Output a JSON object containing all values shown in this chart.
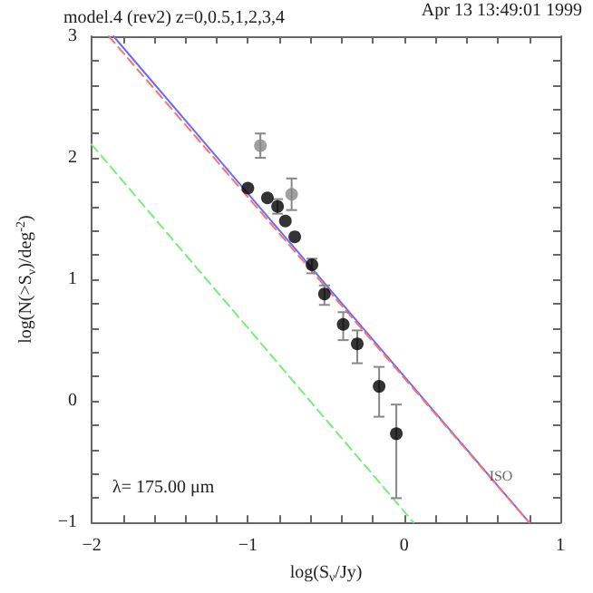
{
  "chart_data": {
    "type": "scatter",
    "title": "model.4 (rev2) z=0,0.5,1,2,3,4",
    "xlabel": "log(S$_{ν}$/Jy)",
    "ylabel": "log(N(>S$_{ν}$)/deg$^{-2}$)",
    "annotations": [
      "Apr 13 13:49:01 1999",
      "λ= 175.00 μm",
      {
        "text": "ISO",
        "x": 0.62,
        "y": -0.62
      }
    ],
    "xlim": [
      -2,
      1
    ],
    "ylim": [
      -1,
      3
    ],
    "xticks": [
      {
        "value": -2,
        "label": "−2"
      },
      {
        "value": -1.8,
        "label": null
      },
      {
        "value": -1.6,
        "label": null
      },
      {
        "value": -1.4,
        "label": null
      },
      {
        "value": -1.2,
        "label": null
      },
      {
        "value": -1,
        "label": "−1"
      },
      {
        "value": -0.8,
        "label": null
      },
      {
        "value": -0.6,
        "label": null
      },
      {
        "value": -0.4,
        "label": null
      },
      {
        "value": -0.2,
        "label": null
      },
      0,
      {
        "value": 0.2,
        "label": null
      },
      {
        "value": 0.4,
        "label": null
      },
      {
        "value": 0.6,
        "label": null
      },
      {
        "value": 0.8,
        "label": null
      },
      1
    ],
    "yticks": [
      {
        "value": -1,
        "label": "−1"
      },
      {
        "value": -0.8,
        "label": null
      },
      {
        "value": -0.6,
        "label": null
      },
      {
        "value": -0.4,
        "label": null
      },
      {
        "value": -0.2,
        "label": null
      },
      0,
      {
        "value": 0.2,
        "label": null
      },
      {
        "value": 0.4,
        "label": null
      },
      {
        "value": 0.6,
        "label": null
      },
      {
        "value": 0.8,
        "label": null
      },
      1,
      {
        "value": 1.2,
        "label": null
      },
      {
        "value": 1.4,
        "label": null
      },
      {
        "value": 1.6,
        "label": null
      },
      {
        "value": 1.8,
        "label": null
      },
      2,
      {
        "value": 2.2,
        "label": null
      },
      {
        "value": 2.4,
        "label": null
      },
      {
        "value": 2.6,
        "label": null
      },
      {
        "value": 2.8,
        "label": null
      },
      3
    ],
    "grid": false,
    "marker": "circle",
    "series": [
      {
        "type": "line",
        "color": "#6a6aff",
        "line_style": "solid",
        "marker": "none",
        "x": [
          -1.86,
          0.8
        ],
        "values": [
          3,
          -1
        ]
      },
      {
        "type": "line",
        "color": "#ff7070",
        "line_style": "dashed",
        "marker": "none",
        "x": [
          -1.89,
          0.8
        ],
        "values": [
          3,
          -1
        ]
      },
      {
        "type": "line",
        "color": "#77ee77",
        "line_style": "dashed",
        "marker": "none",
        "x": [
          -2,
          0.06
        ],
        "values": [
          2.11,
          -1
        ]
      },
      {
        "color": "#000000",
        "x": [
          -1.0,
          -0.875,
          -0.81,
          -0.76,
          -0.7,
          -0.59,
          -0.51,
          -0.39,
          -0.3,
          -0.16,
          -0.05
        ],
        "values": [
          1.75,
          1.67,
          1.6,
          1.48,
          1.35,
          1.12,
          0.88,
          0.63,
          0.47,
          0.12,
          -0.27
        ],
        "errors": [
          null,
          null,
          [
            1.54,
            1.66
          ],
          null,
          null,
          [
            1.05,
            1.17
          ],
          [
            0.79,
            0.95
          ],
          [
            0.5,
            0.73
          ],
          [
            0.31,
            0.58
          ],
          [
            -0.13,
            0.28
          ],
          [
            -0.8,
            -0.03
          ]
        ]
      },
      {
        "color": "#888888",
        "x": [
          -0.92,
          -0.72
        ],
        "values": [
          2.1,
          1.7
        ],
        "errors": [
          [
            2.0,
            2.2
          ],
          [
            1.57,
            1.83
          ]
        ]
      }
    ]
  }
}
